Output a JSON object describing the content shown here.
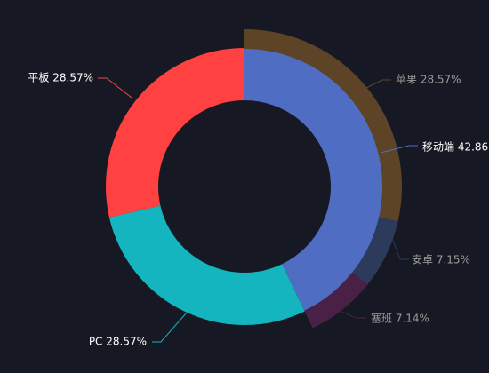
{
  "chart_data": {
    "type": "pie",
    "variant": "nested-donut",
    "background": "#161923",
    "inner": {
      "slices": [
        {
          "name": "移动端",
          "value": 42.86,
          "label": "移动端 42.86",
          "color": "#4F6DC2",
          "label_color": "#FFFFFF"
        },
        {
          "name": "PC",
          "value": 28.57,
          "label": "PC 28.57%",
          "color": "#14B5BF",
          "label_color": "#FFFFFF"
        },
        {
          "name": "平板",
          "value": 28.57,
          "label": "平板 28.57%",
          "color": "#FF4141",
          "label_color": "#FFFFFF"
        }
      ]
    },
    "outer": {
      "slices": [
        {
          "name": "苹果",
          "value": 28.57,
          "label": "苹果 28.57%",
          "color": "#5E4427",
          "label_color": "#9A9A9A"
        },
        {
          "name": "安卓",
          "value": 7.15,
          "label": "安卓 7.15%",
          "color": "#2C3A5C",
          "label_color": "#9A9A9A"
        },
        {
          "name": "塞班",
          "value": 7.14,
          "label": "塞班 7.14%",
          "color": "#4A2146",
          "label_color": "#9A9A9A"
        }
      ]
    },
    "start_position": "top",
    "direction": "clockwise"
  }
}
